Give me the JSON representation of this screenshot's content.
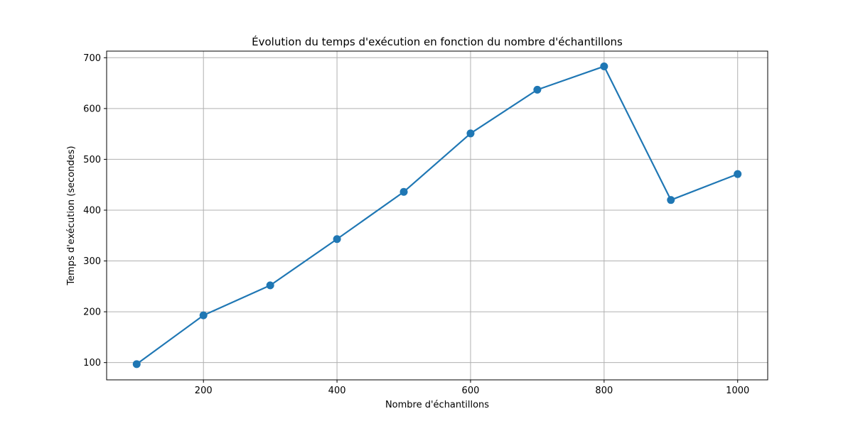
{
  "chart_data": {
    "type": "line",
    "title": "Évolution du temps d'exécution en fonction du nombre d'échantillons",
    "xlabel": "Nombre d'échantillons",
    "ylabel": "Temps d'exécution (secondes)",
    "x": [
      100,
      200,
      300,
      400,
      500,
      600,
      700,
      800,
      900,
      1000
    ],
    "series": [
      {
        "values": [
          97,
          193,
          252,
          343,
          436,
          551,
          637,
          683,
          420,
          471
        ],
        "color": "#1f77b4",
        "marker": "circle"
      }
    ],
    "xlim": [
      55,
      1045
    ],
    "ylim": [
      66,
      713
    ],
    "xticks": [
      200,
      400,
      600,
      800,
      1000
    ],
    "yticks": [
      100,
      200,
      300,
      400,
      500,
      600,
      700
    ],
    "grid": true
  }
}
